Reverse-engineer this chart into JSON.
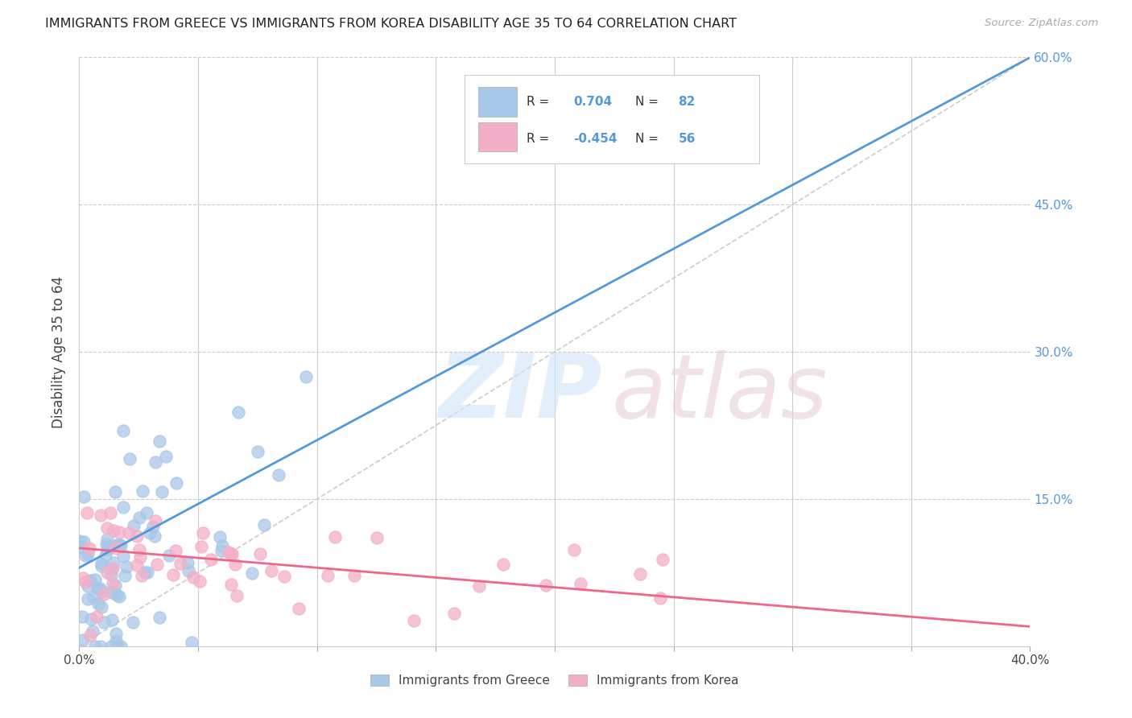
{
  "title": "IMMIGRANTS FROM GREECE VS IMMIGRANTS FROM KOREA DISABILITY AGE 35 TO 64 CORRELATION CHART",
  "source": "Source: ZipAtlas.com",
  "ylabel": "Disability Age 35 to 64",
  "x_min": 0.0,
  "x_max": 0.4,
  "y_min": 0.0,
  "y_max": 0.6,
  "grid_color": "#cccccc",
  "background_color": "#ffffff",
  "color_greece": "#a8c8e8",
  "color_korea": "#f4afc8",
  "line_color_greece": "#5599dd",
  "line_color_korea": "#ee6688",
  "dashed_line_color": "#cccccc",
  "right_tick_color": "#5599dd",
  "greece_r": 0.704,
  "greece_n": 82,
  "korea_r": -0.454,
  "korea_n": 56,
  "greece_line_x0": 0.0,
  "greece_line_y0": 0.08,
  "greece_line_x1": 0.4,
  "greece_line_y1": 0.6,
  "korea_line_x0": 0.0,
  "korea_line_y0": 0.1,
  "korea_line_x1": 0.4,
  "korea_line_y1": 0.02,
  "legend_label1": "Immigrants from Greece",
  "legend_label2": "Immigrants from Korea"
}
